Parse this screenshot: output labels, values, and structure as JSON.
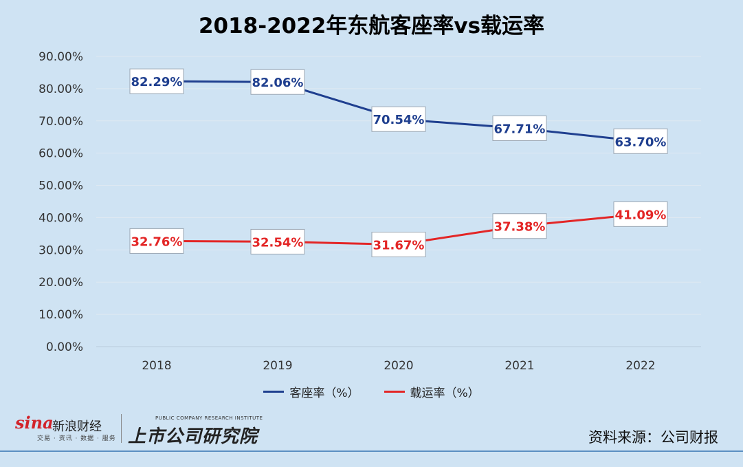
{
  "title": "2018-2022年东航客座率vs载运率",
  "chart_data": {
    "type": "line",
    "x": [
      "2018",
      "2019",
      "2020",
      "2021",
      "2022"
    ],
    "series": [
      {
        "name": "客座率（%）",
        "values": [
          82.29,
          82.06,
          70.54,
          67.71,
          63.7
        ],
        "labels": [
          "82.29%",
          "82.06%",
          "70.54%",
          "67.71%",
          "63.70%"
        ],
        "color": "#1f3f8f"
      },
      {
        "name": "载运率（%）",
        "values": [
          32.76,
          32.54,
          31.67,
          37.38,
          41.09
        ],
        "labels": [
          "32.76%",
          "32.54%",
          "31.67%",
          "37.38%",
          "41.09%"
        ],
        "color": "#e32626"
      }
    ],
    "yticks": [
      "0.00%",
      "10.00%",
      "20.00%",
      "30.00%",
      "40.00%",
      "50.00%",
      "60.00%",
      "70.00%",
      "80.00%",
      "90.00%"
    ],
    "ylim": [
      0,
      90
    ],
    "grid": true,
    "legend_position": "bottom"
  },
  "branding": {
    "sina_logo": "sina",
    "sina_name": "新浪财经",
    "sina_sub": "交易 · 资讯 · 数据 · 服务",
    "institute_en": "PUBLIC COMPANY RESEARCH INSTITUTE",
    "institute_cn": "上市公司研究院"
  },
  "source_note": "资料来源：公司财报"
}
